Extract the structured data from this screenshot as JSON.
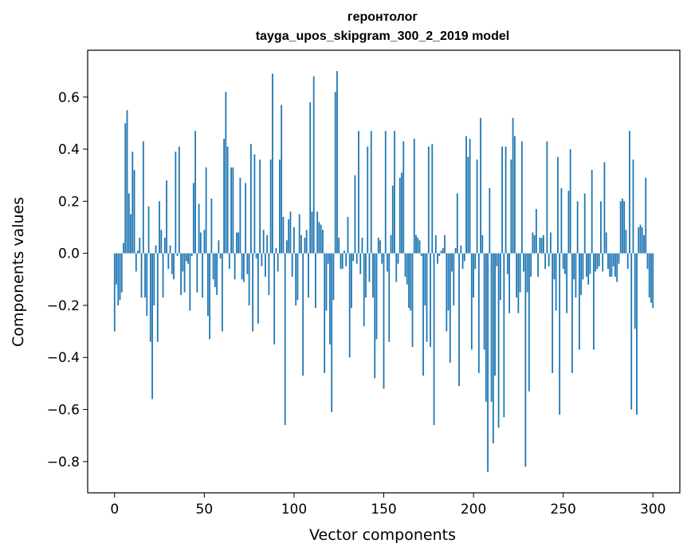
{
  "chart_data": {
    "type": "bar",
    "title": "геронтолог",
    "subtitle": "tayga_upos_skipgram_300_2_2019 model",
    "xlabel": "Vector components",
    "ylabel": "Components values",
    "xlim": [
      -15,
      315
    ],
    "ylim": [
      -0.92,
      0.78
    ],
    "xticks": [
      0,
      50,
      100,
      150,
      200,
      250,
      300
    ],
    "yticks": [
      -0.8,
      -0.6,
      -0.4,
      -0.2,
      0.0,
      0.2,
      0.4,
      0.6
    ],
    "ytick_labels": [
      "−0.8",
      "−0.6",
      "−0.4",
      "−0.2",
      "0.0",
      "0.2",
      "0.4",
      "0.6"
    ],
    "bar_color": "#1f77b4",
    "grid": false,
    "legend": "none",
    "values": [
      -0.3,
      -0.12,
      -0.2,
      -0.18,
      -0.15,
      0.04,
      0.5,
      0.55,
      0.23,
      0.15,
      0.39,
      0.32,
      -0.07,
      0.01,
      0.06,
      -0.17,
      0.43,
      -0.17,
      -0.24,
      0.18,
      -0.34,
      -0.56,
      -0.2,
      0.03,
      -0.34,
      0.2,
      0.09,
      -0.17,
      0.06,
      0.28,
      -0.06,
      0.03,
      -0.08,
      -0.1,
      0.39,
      -0.01,
      0.41,
      -0.16,
      -0.07,
      -0.15,
      -0.03,
      -0.04,
      -0.22,
      -0.01,
      0.27,
      0.47,
      -0.15,
      0.19,
      0.08,
      -0.17,
      0.09,
      0.33,
      -0.24,
      -0.33,
      0.21,
      -0.1,
      -0.13,
      -0.16,
      0.05,
      -0.02,
      -0.3,
      0.44,
      0.62,
      0.41,
      -0.06,
      0.33,
      0.33,
      -0.1,
      0.08,
      0.08,
      0.29,
      -0.1,
      -0.11,
      0.27,
      -0.08,
      -0.2,
      0.42,
      -0.3,
      0.38,
      -0.02,
      -0.27,
      0.36,
      -0.05,
      0.09,
      -0.09,
      0.07,
      -0.16,
      0.36,
      0.69,
      -0.35,
      0.02,
      -0.07,
      0.36,
      0.57,
      0.14,
      -0.66,
      0.05,
      0.13,
      0.16,
      -0.09,
      0.1,
      -0.2,
      -0.18,
      0.15,
      0.07,
      -0.47,
      0.06,
      0.09,
      -0.17,
      0.58,
      0.16,
      0.68,
      -0.21,
      0.16,
      0.12,
      0.11,
      0.09,
      -0.46,
      -0.22,
      -0.04,
      -0.35,
      -0.61,
      -0.18,
      0.62,
      0.7,
      0.06,
      -0.06,
      -0.06,
      0.01,
      -0.05,
      0.14,
      -0.4,
      -0.21,
      -0.03,
      0.3,
      -0.04,
      0.47,
      -0.08,
      0.06,
      -0.28,
      -0.17,
      0.41,
      -0.11,
      0.47,
      -0.17,
      -0.48,
      -0.33,
      0.06,
      0.05,
      -0.04,
      -0.52,
      0.47,
      -0.07,
      -0.34,
      0.07,
      0.26,
      0.47,
      -0.11,
      -0.04,
      0.29,
      0.31,
      0.43,
      -0.09,
      -0.12,
      -0.21,
      -0.22,
      -0.36,
      0.44,
      0.07,
      0.06,
      0.05,
      -0.01,
      -0.47,
      -0.2,
      -0.34,
      0.41,
      -0.36,
      0.42,
      -0.66,
      0.07,
      -0.04,
      -0.01,
      0.01,
      0.02,
      0.07,
      -0.3,
      -0.22,
      -0.42,
      -0.07,
      -0.2,
      0.02,
      0.23,
      -0.51,
      0.03,
      -0.06,
      -0.03,
      0.45,
      0.37,
      0.44,
      -0.37,
      -0.17,
      -0.06,
      0.36,
      -0.46,
      0.52,
      0.07,
      -0.37,
      -0.57,
      -0.84,
      0.25,
      -0.57,
      -0.73,
      -0.47,
      -0.05,
      -0.67,
      -0.18,
      0.41,
      -0.63,
      0.41,
      -0.08,
      -0.23,
      0.36,
      0.52,
      0.45,
      -0.17,
      -0.23,
      -0.15,
      0.43,
      -0.07,
      -0.82,
      -0.15,
      -0.53,
      -0.09,
      0.08,
      0.07,
      0.17,
      -0.09,
      0.06,
      0.06,
      0.07,
      -0.06,
      0.43,
      -0.05,
      0.08,
      -0.46,
      -0.1,
      -0.22,
      0.37,
      -0.62,
      0.25,
      -0.06,
      -0.08,
      -0.23,
      0.24,
      0.4,
      -0.46,
      -0.1,
      -0.17,
      0.2,
      -0.37,
      -0.16,
      -0.1,
      0.23,
      -0.09,
      -0.12,
      -0.08,
      0.32,
      -0.37,
      -0.07,
      -0.06,
      -0.05,
      0.2,
      -0.07,
      0.35,
      0.08,
      -0.06,
      -0.09,
      -0.09,
      -0.05,
      -0.09,
      -0.11,
      -0.04,
      0.2,
      0.21,
      0.2,
      0.09,
      -0.06,
      0.47,
      -0.6,
      0.36,
      -0.29,
      -0.62,
      0.1,
      0.11,
      0.1,
      0.07,
      0.29,
      -0.06,
      -0.17,
      -0.19,
      -0.21
    ]
  }
}
